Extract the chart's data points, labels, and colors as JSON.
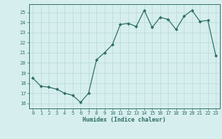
{
  "x": [
    0,
    1,
    2,
    3,
    4,
    5,
    6,
    7,
    8,
    9,
    10,
    11,
    12,
    13,
    14,
    15,
    16,
    17,
    18,
    19,
    20,
    21,
    22,
    23
  ],
  "y": [
    18.5,
    17.7,
    17.6,
    17.4,
    17.0,
    16.8,
    16.1,
    17.0,
    20.3,
    21.0,
    21.8,
    23.8,
    23.9,
    23.6,
    25.2,
    23.5,
    24.5,
    24.3,
    23.3,
    24.6,
    25.2,
    24.1,
    24.2,
    20.7
  ],
  "xlabel": "Humidex (Indice chaleur)",
  "ylim": [
    15.5,
    25.8
  ],
  "xlim": [
    -0.5,
    23.5
  ],
  "yticks": [
    16,
    17,
    18,
    19,
    20,
    21,
    22,
    23,
    24,
    25
  ],
  "xticks": [
    0,
    1,
    2,
    3,
    4,
    5,
    6,
    7,
    8,
    9,
    10,
    11,
    12,
    13,
    14,
    15,
    16,
    17,
    18,
    19,
    20,
    21,
    22,
    23
  ],
  "line_color": "#2d6e65",
  "marker_color": "#2d6e65",
  "bg_color": "#d6eeee",
  "grid_color": "#b8d8d8",
  "tick_color": "#2d6e65",
  "label_color": "#2d6e65",
  "axis_color": "#2d6e65",
  "tick_fontsize": 5.0,
  "xlabel_fontsize": 6.0
}
